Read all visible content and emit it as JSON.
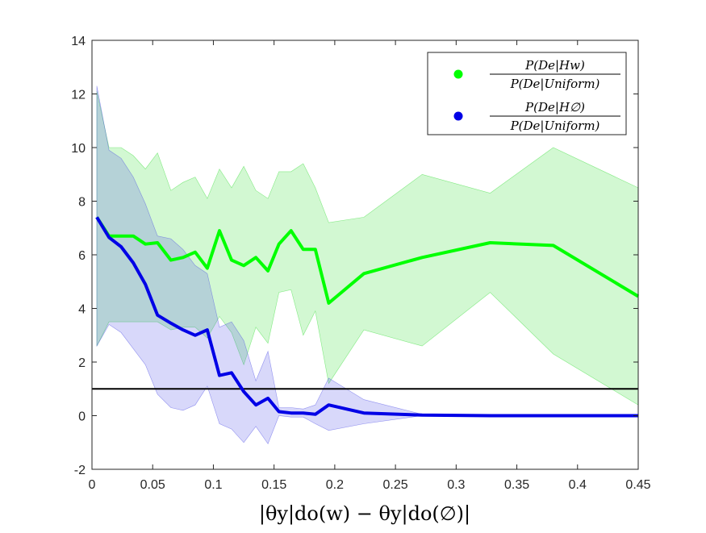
{
  "chart_data": {
    "type": "line",
    "xlabel": "|θy|do(w) − θy|do(∅)|",
    "xlim": [
      0,
      0.45
    ],
    "ylim": [
      -2,
      14
    ],
    "x_ticks": [
      0,
      0.05,
      0.1,
      0.15,
      0.2,
      0.25,
      0.3,
      0.35,
      0.4,
      0.45
    ],
    "x_tick_labels": [
      "0",
      "0.05",
      "0.1",
      "0.15",
      "0.2",
      "0.25",
      "0.3",
      "0.35",
      "0.4",
      "0.45"
    ],
    "y_ticks": [
      -2,
      0,
      2,
      4,
      6,
      8,
      10,
      12,
      14
    ],
    "y_tick_labels": [
      "-2",
      "0",
      "2",
      "4",
      "6",
      "8",
      "10",
      "12",
      "14"
    ],
    "grid": false,
    "legend_position": "top-right",
    "reference_line": {
      "y": 1,
      "color": "#000000"
    },
    "series": [
      {
        "name": "P(De|Hw) / P(De|Uniform)",
        "legend_numerator": "P(De|Hw)",
        "legend_denominator": "P(De|Uniform)",
        "color": "#00ff00",
        "band_color": "#33dd33",
        "x": [
          0.004,
          0.014,
          0.024,
          0.034,
          0.044,
          0.054,
          0.065,
          0.075,
          0.085,
          0.095,
          0.105,
          0.115,
          0.125,
          0.135,
          0.145,
          0.154,
          0.164,
          0.174,
          0.184,
          0.195,
          0.224,
          0.272,
          0.328,
          0.38,
          0.45
        ],
        "y": [
          7.4,
          6.7,
          6.7,
          6.7,
          6.4,
          6.45,
          5.8,
          5.9,
          6.1,
          5.5,
          6.9,
          5.8,
          5.6,
          5.9,
          5.4,
          6.4,
          6.9,
          6.2,
          6.2,
          4.2,
          5.3,
          5.9,
          6.45,
          6.35,
          4.45
        ],
        "upper": [
          12.1,
          10.0,
          10.0,
          9.7,
          9.2,
          9.8,
          8.4,
          8.7,
          8.9,
          8.1,
          9.2,
          8.5,
          9.3,
          8.4,
          8.1,
          9.1,
          9.1,
          9.4,
          8.5,
          7.2,
          7.4,
          9.0,
          8.3,
          10.0,
          8.5
        ],
        "lower": [
          2.6,
          3.5,
          3.5,
          3.5,
          3.5,
          3.5,
          3.2,
          3.3,
          3.3,
          2.9,
          3.7,
          3.1,
          1.9,
          3.3,
          2.7,
          4.6,
          4.7,
          3.0,
          3.9,
          1.2,
          3.2,
          2.6,
          4.6,
          2.3,
          0.4
        ]
      },
      {
        "name": "P(De|H∅) / P(De|Uniform)",
        "legend_numerator": "P(De|H∅)",
        "legend_denominator": "P(De|Uniform)",
        "color": "#0000e6",
        "band_color": "#4d4de6",
        "x": [
          0.004,
          0.014,
          0.024,
          0.034,
          0.044,
          0.054,
          0.065,
          0.075,
          0.085,
          0.095,
          0.105,
          0.115,
          0.125,
          0.135,
          0.145,
          0.154,
          0.164,
          0.174,
          0.184,
          0.195,
          0.224,
          0.272,
          0.328,
          0.38,
          0.45
        ],
        "y": [
          7.4,
          6.65,
          6.3,
          5.7,
          4.9,
          3.75,
          3.45,
          3.2,
          3.0,
          3.2,
          1.5,
          1.6,
          0.9,
          0.4,
          0.65,
          0.15,
          0.1,
          0.1,
          0.05,
          0.4,
          0.1,
          0.02,
          0.0,
          0.0,
          0.0
        ],
        "upper": [
          12.3,
          9.9,
          9.6,
          8.9,
          7.9,
          6.7,
          6.6,
          6.2,
          5.6,
          5.3,
          3.3,
          3.5,
          2.8,
          1.3,
          2.4,
          0.3,
          0.3,
          0.25,
          0.4,
          1.4,
          0.6,
          0.05,
          0.0,
          0.0,
          0.0
        ],
        "lower": [
          2.6,
          3.4,
          3.1,
          2.5,
          1.9,
          0.8,
          0.3,
          0.2,
          0.4,
          1.1,
          -0.3,
          -0.5,
          -1.0,
          -0.4,
          -1.05,
          0.0,
          -0.05,
          -0.05,
          -0.3,
          -0.55,
          -0.3,
          0.0,
          0.0,
          0.0,
          0.0
        ]
      }
    ]
  }
}
